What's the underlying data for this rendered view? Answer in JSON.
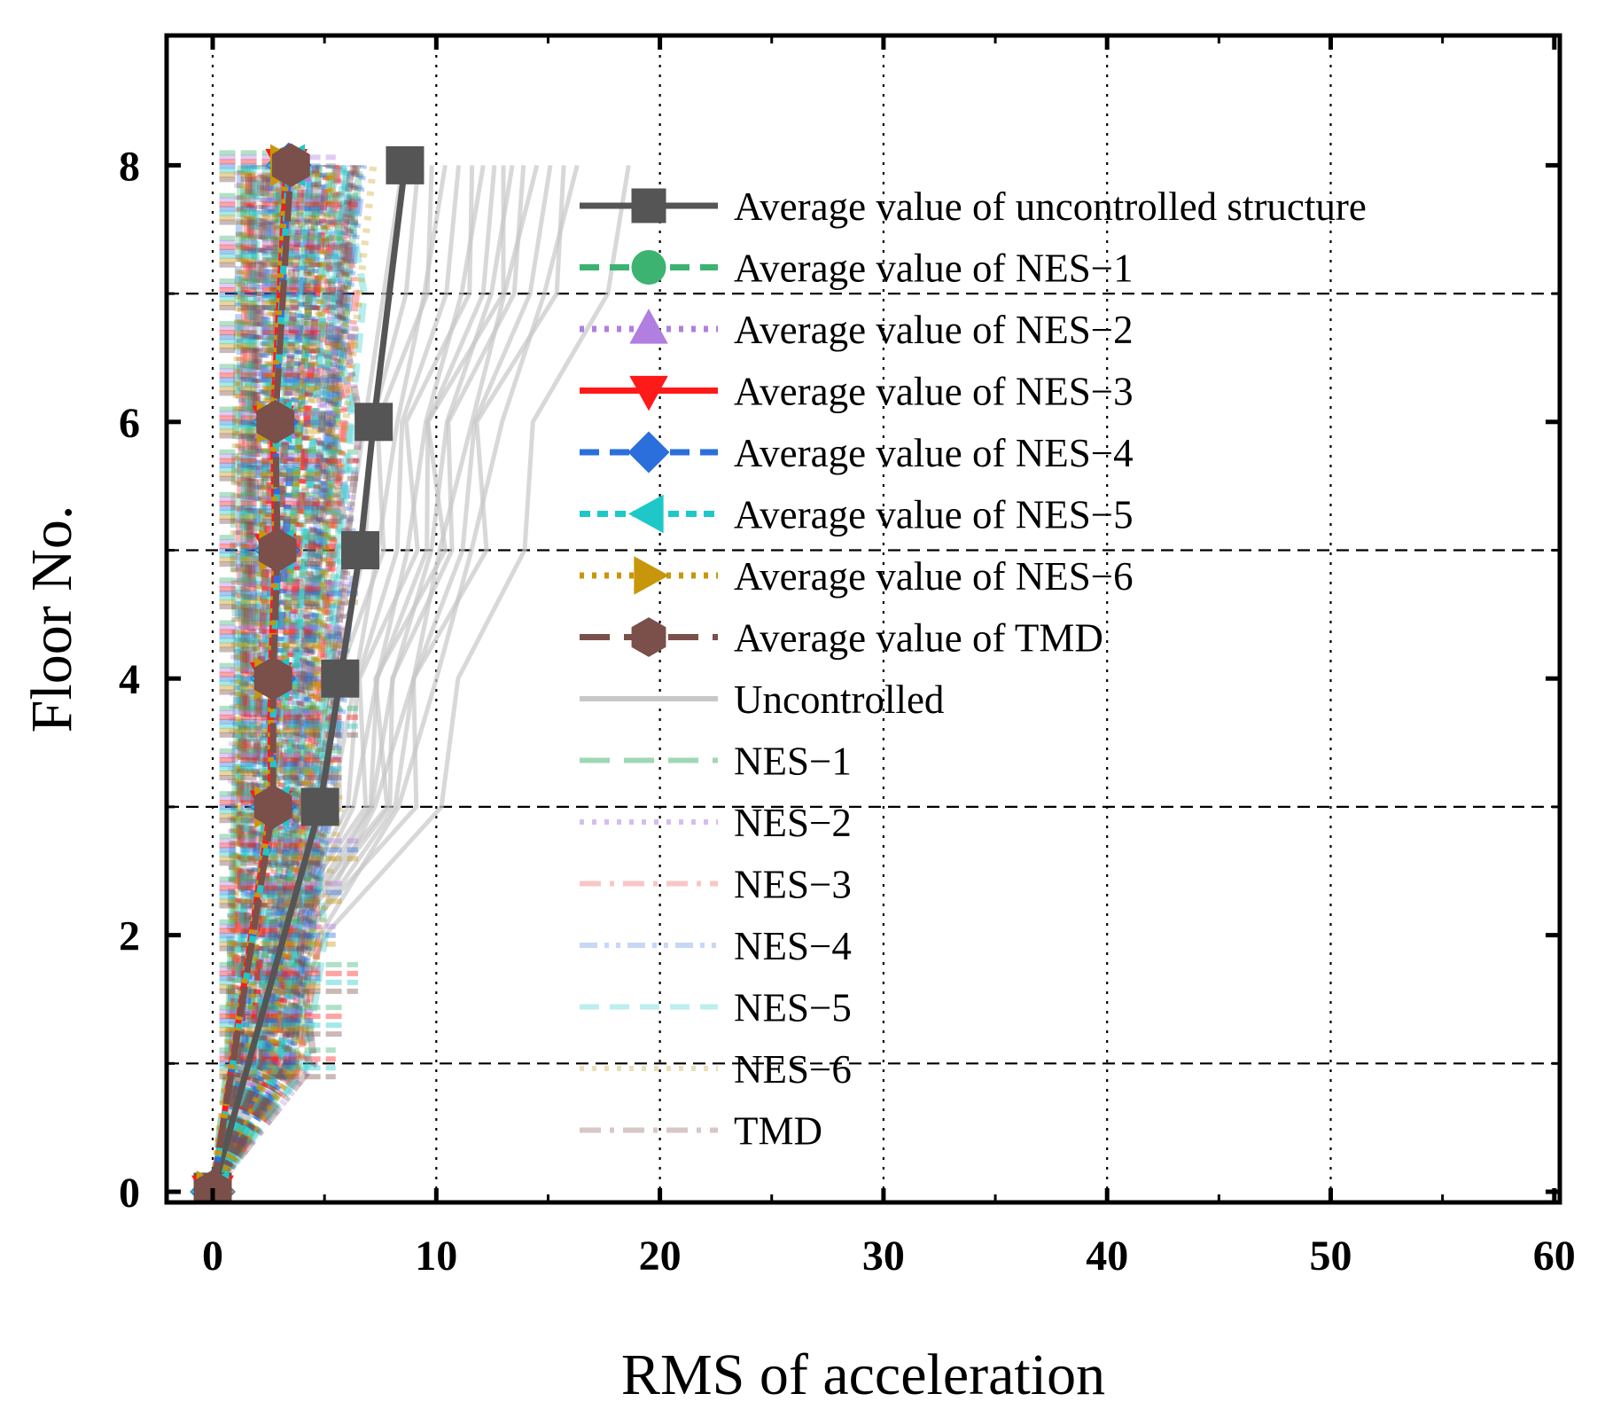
{
  "chart_data": {
    "type": "line",
    "orientation": "horizontal-profile",
    "xlabel": "RMS of acceleration",
    "ylabel": "Floor No.",
    "xlim": [
      -2,
      60
    ],
    "ylim": [
      -0.1,
      9
    ],
    "xticks": [
      0,
      10,
      20,
      30,
      40,
      50,
      60
    ],
    "yticks": [
      0,
      2,
      4,
      6,
      8
    ],
    "grid": "on",
    "legend_position": "top-right",
    "floors": [
      0,
      3,
      4,
      5,
      6,
      8
    ],
    "series": [
      {
        "name": "Average value of uncontrolled structure",
        "color": "#555555",
        "marker": "square",
        "dash": "solid",
        "values": [
          0,
          4.8,
          5.7,
          6.6,
          7.2,
          8.6
        ]
      },
      {
        "name": "Average value of NES−1",
        "color": "#3cb371",
        "marker": "circle",
        "dash": "dash",
        "values": [
          0,
          2.7,
          2.7,
          2.9,
          2.8,
          3.4
        ]
      },
      {
        "name": "Average value of NES−2",
        "color": "#b07fe0",
        "marker": "triangle-up",
        "dash": "dot",
        "values": [
          0,
          2.7,
          2.7,
          2.9,
          2.8,
          3.5
        ]
      },
      {
        "name": "Average value of NES−3",
        "color": "#ff1a1a",
        "marker": "triangle-down",
        "dash": "solid",
        "values": [
          0,
          2.6,
          2.6,
          2.8,
          2.7,
          3.3
        ]
      },
      {
        "name": "Average value of NES−4",
        "color": "#2a6fdb",
        "marker": "diamond",
        "dash": "dash",
        "values": [
          0,
          2.7,
          2.7,
          2.9,
          2.8,
          3.4
        ]
      },
      {
        "name": "Average value of NES−5",
        "color": "#1ec8c8",
        "marker": "triangle-left",
        "dash": "dash-short",
        "values": [
          0,
          2.7,
          2.7,
          2.9,
          2.8,
          3.4
        ]
      },
      {
        "name": "Average value of NES−6",
        "color": "#c8960a",
        "marker": "triangle-right",
        "dash": "dot",
        "values": [
          0,
          2.6,
          2.6,
          2.8,
          2.7,
          3.3
        ]
      },
      {
        "name": "Average value of TMD",
        "color": "#7b4f4a",
        "marker": "hexagon",
        "dash": "dash-long",
        "values": [
          0,
          2.7,
          2.7,
          2.9,
          2.8,
          3.5
        ]
      }
    ],
    "sample_groups": [
      {
        "name": "Uncontrolled",
        "color": "#c8c8c8",
        "dash": "solid"
      },
      {
        "name": "NES−1",
        "color": "#9fd8b4",
        "dash": "dash-long"
      },
      {
        "name": "NES−2",
        "color": "#d6bdf0",
        "dash": "dot"
      },
      {
        "name": "NES−3",
        "color": "#f9c6c6",
        "dash": "dashdot"
      },
      {
        "name": "NES−4",
        "color": "#c6d8f4",
        "dash": "dashdotdot"
      },
      {
        "name": "NES−5",
        "color": "#bdeef0",
        "dash": "dash"
      },
      {
        "name": "NES−6",
        "color": "#ecdfb8",
        "dash": "dot"
      },
      {
        "name": "TMD",
        "color": "#d7c7c5",
        "dash": "dashdot"
      }
    ],
    "uncontrolled_record_tops": [
      8.5,
      9.2,
      9.8,
      10.4,
      11.0,
      11.6,
      12.1,
      12.6,
      13.0,
      13.4,
      13.9,
      14.5,
      15.1,
      15.7,
      16.3,
      18.6
    ]
  }
}
